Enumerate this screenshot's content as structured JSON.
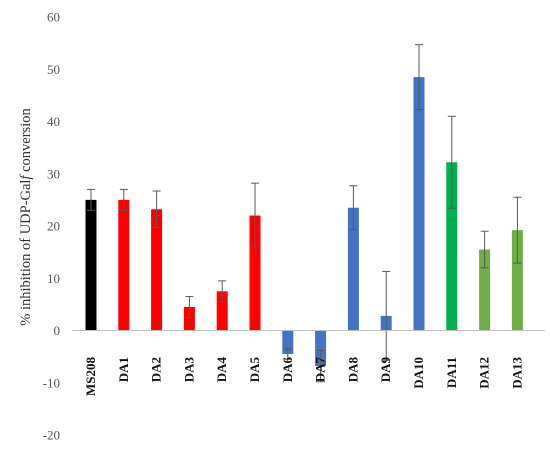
{
  "chart_data": {
    "type": "bar",
    "title": "",
    "xlabel": "",
    "ylabel_prefix": "% inhibition of UDP-Gal",
    "ylabel_italic": "f",
    "ylabel_suffix": " conversion",
    "ylim": [
      -20,
      60
    ],
    "yticks": [
      -20,
      -10,
      0,
      10,
      20,
      30,
      40,
      50,
      60
    ],
    "grid": false,
    "legend": "none",
    "categories": [
      "MS208",
      "DA1",
      "DA2",
      "DA3",
      "DA4",
      "DA5",
      "DA6",
      "DA7",
      "DA8",
      "DA9",
      "DA10",
      "DA11",
      "DA12",
      "DA13"
    ],
    "values": [
      25,
      25,
      23.2,
      4.5,
      7.5,
      22,
      -4.5,
      -6.8,
      23.5,
      2.8,
      48.5,
      32.2,
      15.5,
      19.2
    ],
    "errors": [
      2,
      2,
      3.5,
      2,
      2,
      6.2,
      1,
      3,
      4.2,
      8.5,
      6.2,
      8.8,
      3.5,
      6.3
    ],
    "colors": [
      "#000000",
      "#ff0000",
      "#ff0000",
      "#ff0000",
      "#ff0000",
      "#ff0000",
      "#4472c4",
      "#4472c4",
      "#4472c4",
      "#4472c4",
      "#4472c4",
      "#00b050",
      "#70ad47",
      "#70ad47"
    ]
  }
}
